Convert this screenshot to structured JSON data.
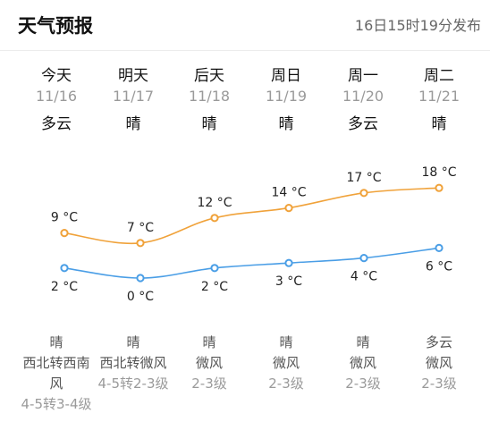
{
  "header": {
    "title": "天气预报",
    "publish_time": "16日15时19分发布"
  },
  "days": [
    {
      "day": "今天",
      "date": "11/16",
      "day_weather": "多云",
      "night_weather": "晴",
      "wind_dir": "西北转西南风",
      "wind_level": "4-5转3-4级",
      "high": "9 °C",
      "low": "2 °C"
    },
    {
      "day": "明天",
      "date": "11/17",
      "day_weather": "晴",
      "night_weather": "晴",
      "wind_dir": "西北转微风",
      "wind_level": "4-5转2-3级",
      "high": "7 °C",
      "low": "0 °C"
    },
    {
      "day": "后天",
      "date": "11/18",
      "day_weather": "晴",
      "night_weather": "晴",
      "wind_dir": "微风",
      "wind_level": "2-3级",
      "high": "12 °C",
      "low": "2 °C"
    },
    {
      "day": "周日",
      "date": "11/19",
      "day_weather": "晴",
      "night_weather": "晴",
      "wind_dir": "微风",
      "wind_level": "2-3级",
      "high": "14 °C",
      "low": "3 °C"
    },
    {
      "day": "周一",
      "date": "11/20",
      "day_weather": "多云",
      "night_weather": "晴",
      "wind_dir": "微风",
      "wind_level": "2-3级",
      "high": "17 °C",
      "low": "4 °C"
    },
    {
      "day": "周二",
      "date": "11/21",
      "day_weather": "晴",
      "night_weather": "多云",
      "wind_dir": "微风",
      "wind_level": "2-3级",
      "high": "18 °C",
      "low": "6 °C"
    }
  ],
  "chart_data": {
    "type": "line",
    "categories": [
      "11/16",
      "11/17",
      "11/18",
      "11/19",
      "11/20",
      "11/21"
    ],
    "series": [
      {
        "values": [
          9,
          7,
          12,
          14,
          17,
          18
        ],
        "color": "#f0a23a"
      },
      {
        "values": [
          2,
          0,
          2,
          3,
          4,
          6
        ],
        "color": "#4a9ee6"
      }
    ],
    "unit": "°C",
    "grid": false
  }
}
